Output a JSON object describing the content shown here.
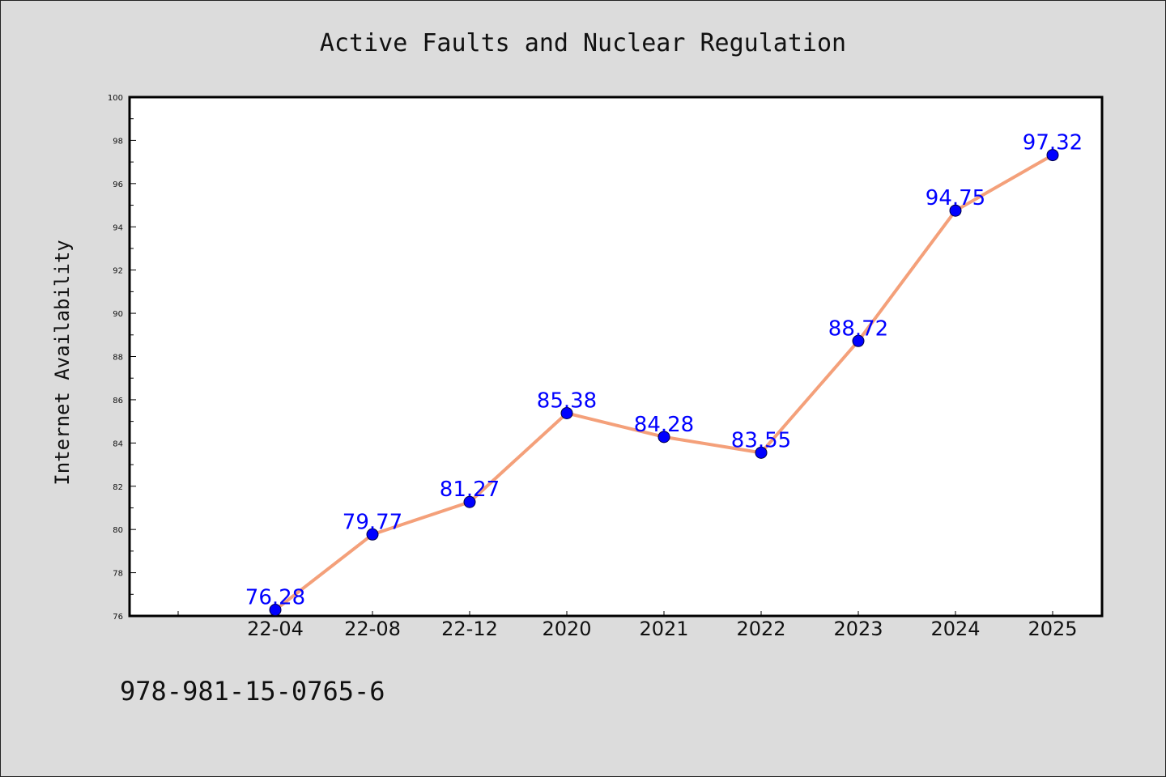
{
  "chart_data": {
    "type": "line",
    "title": "Active Faults and Nuclear Regulation",
    "xlabel": "",
    "ylabel": "Internet Availability",
    "categories": [
      "22-04",
      "22-08",
      "22-12",
      "2020",
      "2021",
      "2022",
      "2023",
      "2024",
      "2025"
    ],
    "series": [
      {
        "values": [
          76.28,
          79.77,
          81.27,
          85.38,
          84.28,
          83.55,
          88.72,
          94.75,
          97.32
        ]
      }
    ],
    "data_labels": [
      "76.28",
      "79.77",
      "81.27",
      "85.38",
      "84.28",
      "83.55",
      "88.72",
      "94.75",
      "97.32"
    ],
    "ylim": [
      76,
      100
    ],
    "yticks": [
      "76",
      "78",
      "80",
      "82",
      "84",
      "86",
      "88",
      "90",
      "92",
      "94",
      "96",
      "98",
      "100"
    ],
    "grid": false,
    "legend": "none",
    "colors": {
      "line": "#f4a07a",
      "marker": "#0000ff",
      "data_label": "#0000ff",
      "background": "#dcdcdc",
      "plot_area": "#ffffff"
    }
  },
  "footnote": "978-981-15-0765-6"
}
